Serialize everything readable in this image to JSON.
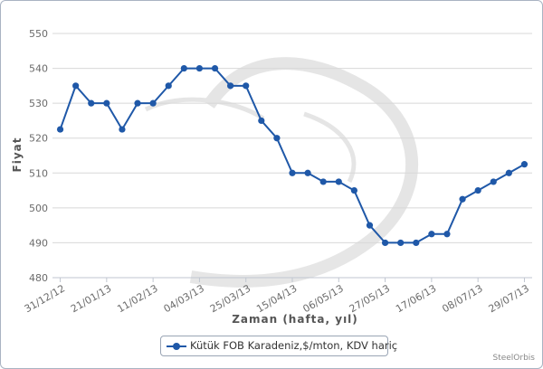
{
  "chart_data": {
    "type": "line",
    "title": "",
    "xlabel": "Zaman (hafta, yıl)",
    "ylabel": "Fiyat",
    "ylim": [
      480,
      550
    ],
    "yticks": [
      480,
      490,
      500,
      510,
      520,
      530,
      540,
      550
    ],
    "x_tick_labels": [
      "31/12/12",
      "21/01/13",
      "11/02/13",
      "04/03/13",
      "25/03/13",
      "15/04/13",
      "06/05/13",
      "27/05/13",
      "17/06/13",
      "08/07/13",
      "29/07/13"
    ],
    "grid": true,
    "legend_position": "bottom",
    "series": [
      {
        "name": "Kütük FOB Karadeniz,$/mton, KDV hariç",
        "color": "#1f58a8",
        "x": [
          "31/12/12",
          "07/01/13",
          "14/01/13",
          "21/01/13",
          "28/01/13",
          "04/02/13",
          "11/02/13",
          "18/02/13",
          "25/02/13",
          "04/03/13",
          "11/03/13",
          "18/03/13",
          "25/03/13",
          "01/04/13",
          "08/04/13",
          "15/04/13",
          "22/04/13",
          "29/04/13",
          "06/05/13",
          "13/05/13",
          "20/05/13",
          "27/05/13",
          "03/06/13",
          "10/06/13",
          "17/06/13",
          "24/06/13",
          "01/07/13",
          "08/07/13",
          "15/07/13",
          "22/07/13",
          "29/07/13"
        ],
        "values": [
          522.5,
          535,
          530,
          530,
          522.5,
          530,
          530,
          535,
          540,
          540,
          540,
          535,
          535,
          525,
          520,
          510,
          510,
          507.5,
          507.5,
          505,
          495,
          490,
          490,
          490,
          492.5,
          492.5,
          502.5,
          505,
          507.5,
          510,
          512.5
        ]
      }
    ]
  },
  "credit": "SteelOrbis"
}
